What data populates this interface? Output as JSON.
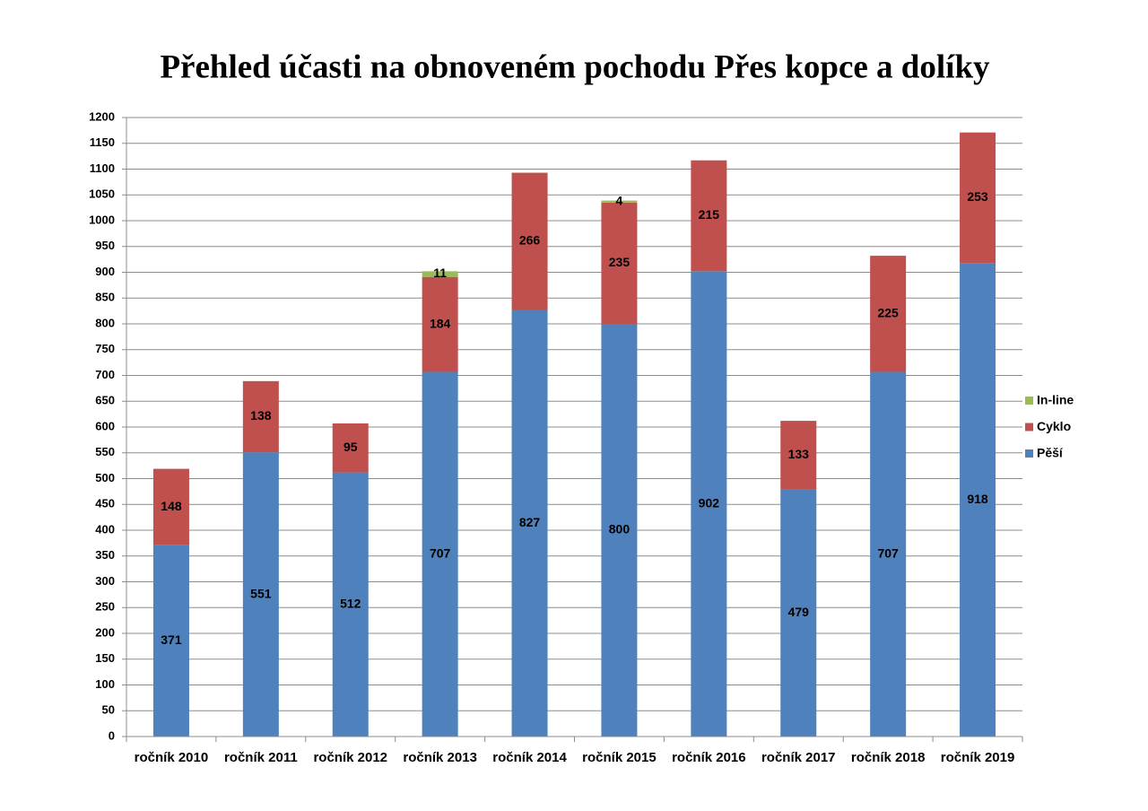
{
  "chart_data": {
    "type": "stacked_bar",
    "title": "Přehled účasti na obnoveném pochodu Přes kopce a dolíky",
    "categories": [
      "ročník 2010",
      "ročník 2011",
      "ročník 2012",
      "ročník 2013",
      "ročník 2014",
      "ročník 2015",
      "ročník 2016",
      "ročník 2017",
      "ročník 2018",
      "ročník 2019"
    ],
    "series": [
      {
        "name": "Pěší",
        "color": "#4f81bd",
        "values": [
          371,
          551,
          512,
          707,
          827,
          800,
          902,
          479,
          707,
          918
        ]
      },
      {
        "name": "Cyklo",
        "color": "#c0504d",
        "values": [
          148,
          138,
          95,
          184,
          266,
          235,
          215,
          133,
          225,
          253
        ]
      },
      {
        "name": "In-line",
        "color": "#9bbb59",
        "values": [
          null,
          null,
          null,
          11,
          null,
          4,
          null,
          null,
          null,
          null
        ]
      }
    ],
    "ylim": [
      0,
      1200
    ],
    "yticks": [
      0,
      50,
      100,
      150,
      200,
      250,
      300,
      350,
      400,
      450,
      500,
      550,
      600,
      650,
      700,
      750,
      800,
      850,
      900,
      950,
      1000,
      1050,
      1100,
      1150,
      1200
    ],
    "grid": true,
    "legend": "right"
  }
}
